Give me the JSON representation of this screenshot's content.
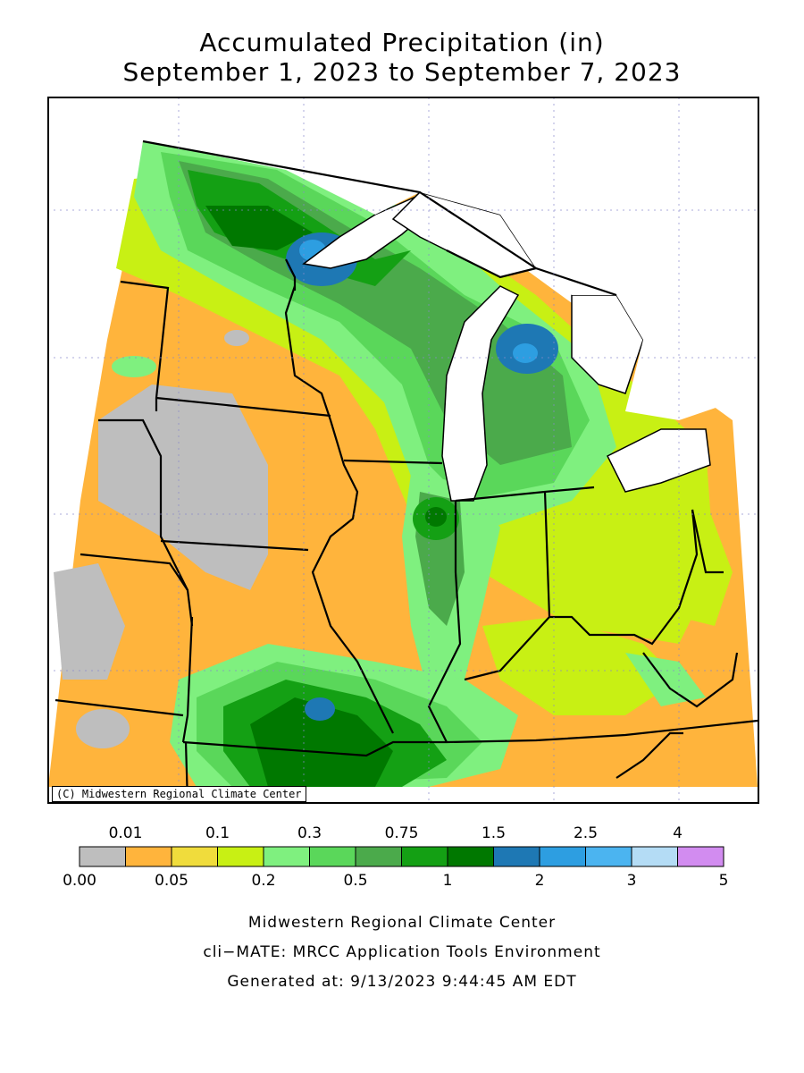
{
  "title": {
    "line1": "Accumulated Precipitation (in)",
    "line2": "September 1, 2023 to September 7, 2023"
  },
  "copyright": "(C) Midwestern Regional Climate Center",
  "legend": {
    "bins": [
      {
        "lo": "0.00",
        "hi": "0.01",
        "color": "#bebebe"
      },
      {
        "lo": "0.01",
        "hi": "0.05",
        "color": "#ffb43c"
      },
      {
        "lo": "0.05",
        "hi": "0.1",
        "color": "#f0dc3c"
      },
      {
        "lo": "0.1",
        "hi": "0.2",
        "color": "#c8f014"
      },
      {
        "lo": "0.2",
        "hi": "0.3",
        "color": "#7ff07f"
      },
      {
        "lo": "0.3",
        "hi": "0.5",
        "color": "#5ad75a"
      },
      {
        "lo": "0.5",
        "hi": "0.75",
        "color": "#4baa4b"
      },
      {
        "lo": "0.75",
        "hi": "1",
        "color": "#14a014"
      },
      {
        "lo": "1",
        "hi": "1.5",
        "color": "#007800"
      },
      {
        "lo": "1.5",
        "hi": "2",
        "color": "#1e78b4"
      },
      {
        "lo": "2",
        "hi": "2.5",
        "color": "#2d9ee1"
      },
      {
        "lo": "2.5",
        "hi": "3",
        "color": "#4bb4f0"
      },
      {
        "lo": "3",
        "hi": "4",
        "color": "#b4dcf5"
      },
      {
        "lo": "4",
        "hi": "5",
        "color": "#d28cf0"
      }
    ],
    "top_labels": [
      "0.01",
      "0.1",
      "0.3",
      "0.75",
      "1.5",
      "2.5",
      "4"
    ],
    "bottom_labels": [
      "0.00",
      "0.05",
      "0.2",
      "0.5",
      "1",
      "2",
      "3",
      "5"
    ]
  },
  "footer": {
    "line1": "Midwestern Regional Climate Center",
    "line2": "cli−MATE: MRCC Application Tools Environment",
    "line3": "Generated at: 9/13/2023 9:44:45 AM EDT"
  }
}
